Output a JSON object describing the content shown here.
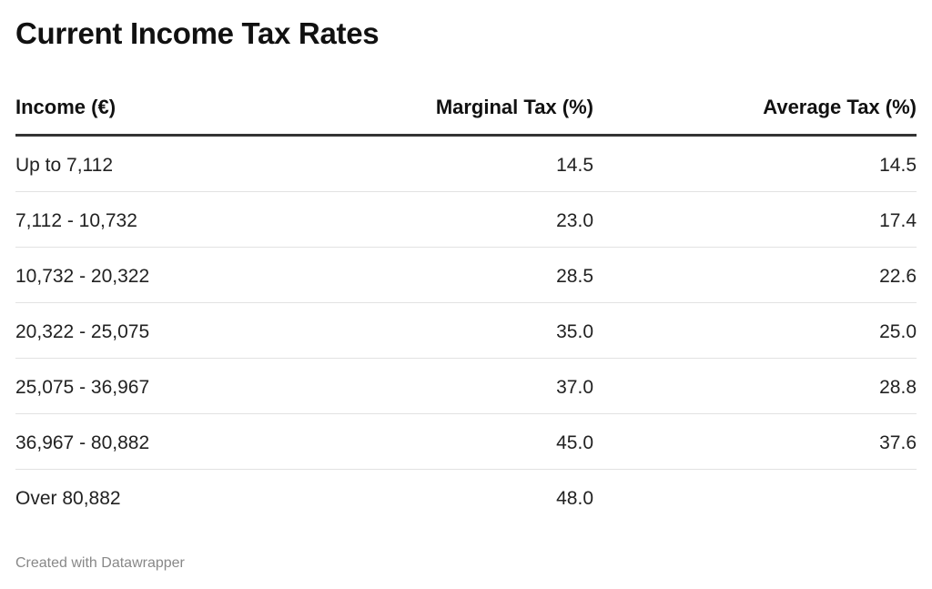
{
  "header": {
    "title": "Current Income Tax Rates"
  },
  "table": {
    "columns": [
      "Income (€)",
      "Marginal Tax (%)",
      "Average Tax (%)"
    ],
    "rows": [
      [
        "Up to 7,112",
        "14.5",
        "14.5"
      ],
      [
        "7,112 - 10,732",
        "23.0",
        "17.4"
      ],
      [
        "10,732 - 20,322",
        "28.5",
        "22.6"
      ],
      [
        "20,322 - 25,075",
        "35.0",
        "25.0"
      ],
      [
        "25,075 - 36,967",
        "37.0",
        "28.8"
      ],
      [
        "36,967 - 80,882",
        "45.0",
        "37.6"
      ],
      [
        "Over 80,882",
        "48.0"
      ]
    ]
  },
  "footer": {
    "credit": "Created with Datawrapper"
  }
}
